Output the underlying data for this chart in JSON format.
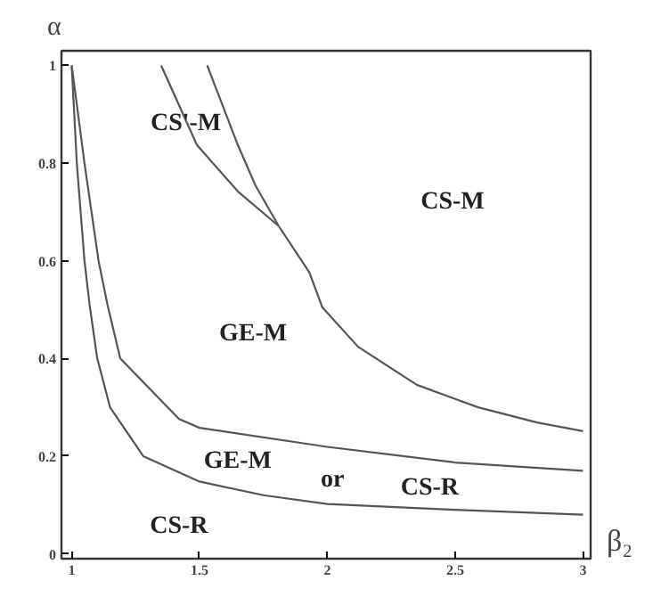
{
  "chart_data": {
    "type": "line",
    "xlabel": "β₂",
    "ylabel": "α",
    "xlim": [
      0.96,
      3.03
    ],
    "ylim": [
      -0.01,
      1.03
    ],
    "xticks": [
      1,
      1.5,
      2,
      2.5,
      3
    ],
    "yticks": [
      0,
      0.2,
      0.4,
      0.6,
      0.8,
      1
    ],
    "grid": false,
    "marker": "none",
    "line_style": "solid",
    "series": [
      {
        "color": "#555555",
        "x": [
          1.0,
          1.02,
          1.05,
          1.07,
          1.1,
          1.15,
          1.28,
          1.5,
          1.75,
          2.0,
          2.5,
          3.0
        ],
        "values": [
          1.0,
          0.8,
          0.6,
          0.51,
          0.4,
          0.3,
          0.2,
          0.148,
          0.12,
          0.102,
          0.09,
          0.08
        ]
      },
      {
        "color": "#555555",
        "x": [
          1.0,
          1.05,
          1.105,
          1.14,
          1.19,
          1.42,
          1.5,
          2.0,
          2.5,
          3.0
        ],
        "values": [
          1.0,
          0.8,
          0.6,
          0.51,
          0.4,
          0.276,
          0.258,
          0.219,
          0.187,
          0.17
        ]
      },
      {
        "color": "#555555",
        "x": [
          1.35,
          1.49,
          1.65,
          1.81
        ],
        "values": [
          1.0,
          0.837,
          0.742,
          0.671
        ]
      },
      {
        "color": "#555555",
        "x": [
          1.53,
          1.65,
          1.72,
          1.81,
          1.93,
          1.98,
          2.12,
          2.35,
          2.59,
          2.82,
          3.0
        ],
        "values": [
          1.0,
          0.837,
          0.753,
          0.671,
          0.576,
          0.505,
          0.424,
          0.346,
          0.3,
          0.269,
          0.251
        ]
      }
    ],
    "annotations": [
      "CS'-M",
      "CS-M",
      "GE-M",
      "GE-M",
      "or",
      "CS-R",
      "CS-R"
    ]
  }
}
